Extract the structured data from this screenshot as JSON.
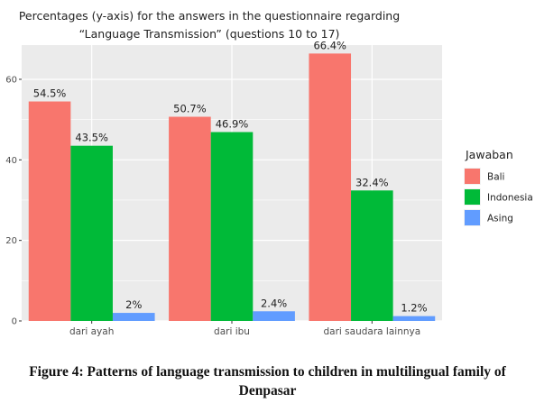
{
  "chart_data": {
    "type": "bar",
    "title_lines": [
      "Percentages (y-axis) for the answers in the questionnaire regarding",
      "“Language Transmission” (questions 10 to 17)"
    ],
    "categories": [
      "dari ayah",
      "dari ibu",
      "dari saudara lainnya"
    ],
    "series": [
      {
        "name": "Bali",
        "color": "#F8766D",
        "values": [
          54.5,
          50.7,
          66.4
        ],
        "labels": [
          "54.5%",
          "50.7%",
          "66.4%"
        ]
      },
      {
        "name": "Indonesia",
        "color": "#00BA38",
        "values": [
          43.5,
          46.9,
          32.4
        ],
        "labels": [
          "43.5%",
          "46.9%",
          "32.4%"
        ]
      },
      {
        "name": "Asing",
        "color": "#619CFF",
        "values": [
          2,
          2.4,
          1.2
        ],
        "labels": [
          "2%",
          "2.4%",
          "1.2%"
        ]
      }
    ],
    "y_ticks": [
      0,
      20,
      40,
      60
    ],
    "ylim": [
      0,
      68.5
    ],
    "grid": true,
    "legend": {
      "title": "Jawaban",
      "position": "right"
    },
    "panel_background": "#EBEBEB",
    "grid_color": "#FFFFFF"
  },
  "caption": "Figure 4: Patterns of language transmission to children in multilingual family of Denpasar"
}
